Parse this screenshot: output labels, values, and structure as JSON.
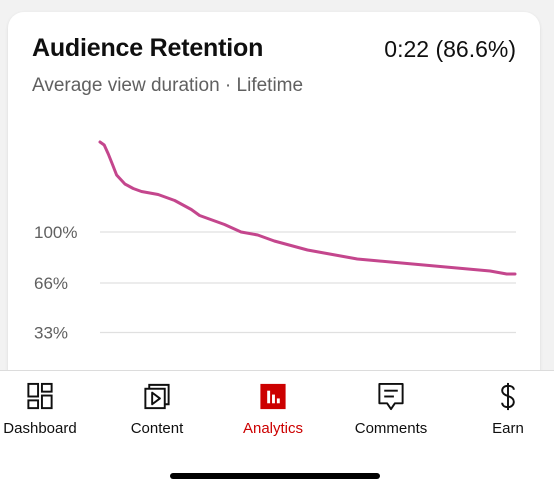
{
  "card": {
    "title": "Audience Retention",
    "headline_value": "0:22 (86.6%)",
    "subtitle": "Average view duration · Lifetime"
  },
  "chart_data": {
    "type": "line",
    "y_tick_labels": [
      "100%",
      "66%",
      "33%"
    ],
    "y_ticks": [
      100,
      66,
      33
    ],
    "line_color": "#c4468d",
    "grid": true,
    "series": [
      {
        "x": [
          0,
          0.01,
          0.02,
          0.03,
          0.04,
          0.06,
          0.08,
          0.1,
          0.12,
          0.14,
          0.16,
          0.18,
          0.2,
          0.22,
          0.24,
          0.26,
          0.28,
          0.3,
          0.34,
          0.38,
          0.42,
          0.46,
          0.5,
          0.54,
          0.58,
          0.62,
          0.66,
          0.7,
          0.74,
          0.78,
          0.82,
          0.86,
          0.9,
          0.94,
          0.96,
          0.98,
          1.0
        ],
        "y": [
          160,
          158,
          152,
          145,
          138,
          132,
          129,
          127,
          126,
          125,
          123,
          121,
          118,
          115,
          111,
          109,
          107,
          105,
          100,
          98,
          94,
          91,
          88,
          86,
          84,
          82,
          81,
          80,
          79,
          78,
          77,
          76,
          75,
          74,
          73,
          72,
          72
        ]
      }
    ]
  },
  "nav": {
    "items": [
      {
        "label": "Dashboard",
        "icon": "dashboard-icon",
        "active": false
      },
      {
        "label": "Content",
        "icon": "content-icon",
        "active": false
      },
      {
        "label": "Analytics",
        "icon": "analytics-icon",
        "active": true
      },
      {
        "label": "Comments",
        "icon": "comments-icon",
        "active": false
      },
      {
        "label": "Earn",
        "icon": "earn-icon",
        "active": false
      }
    ],
    "active_color": "#cc0000"
  }
}
